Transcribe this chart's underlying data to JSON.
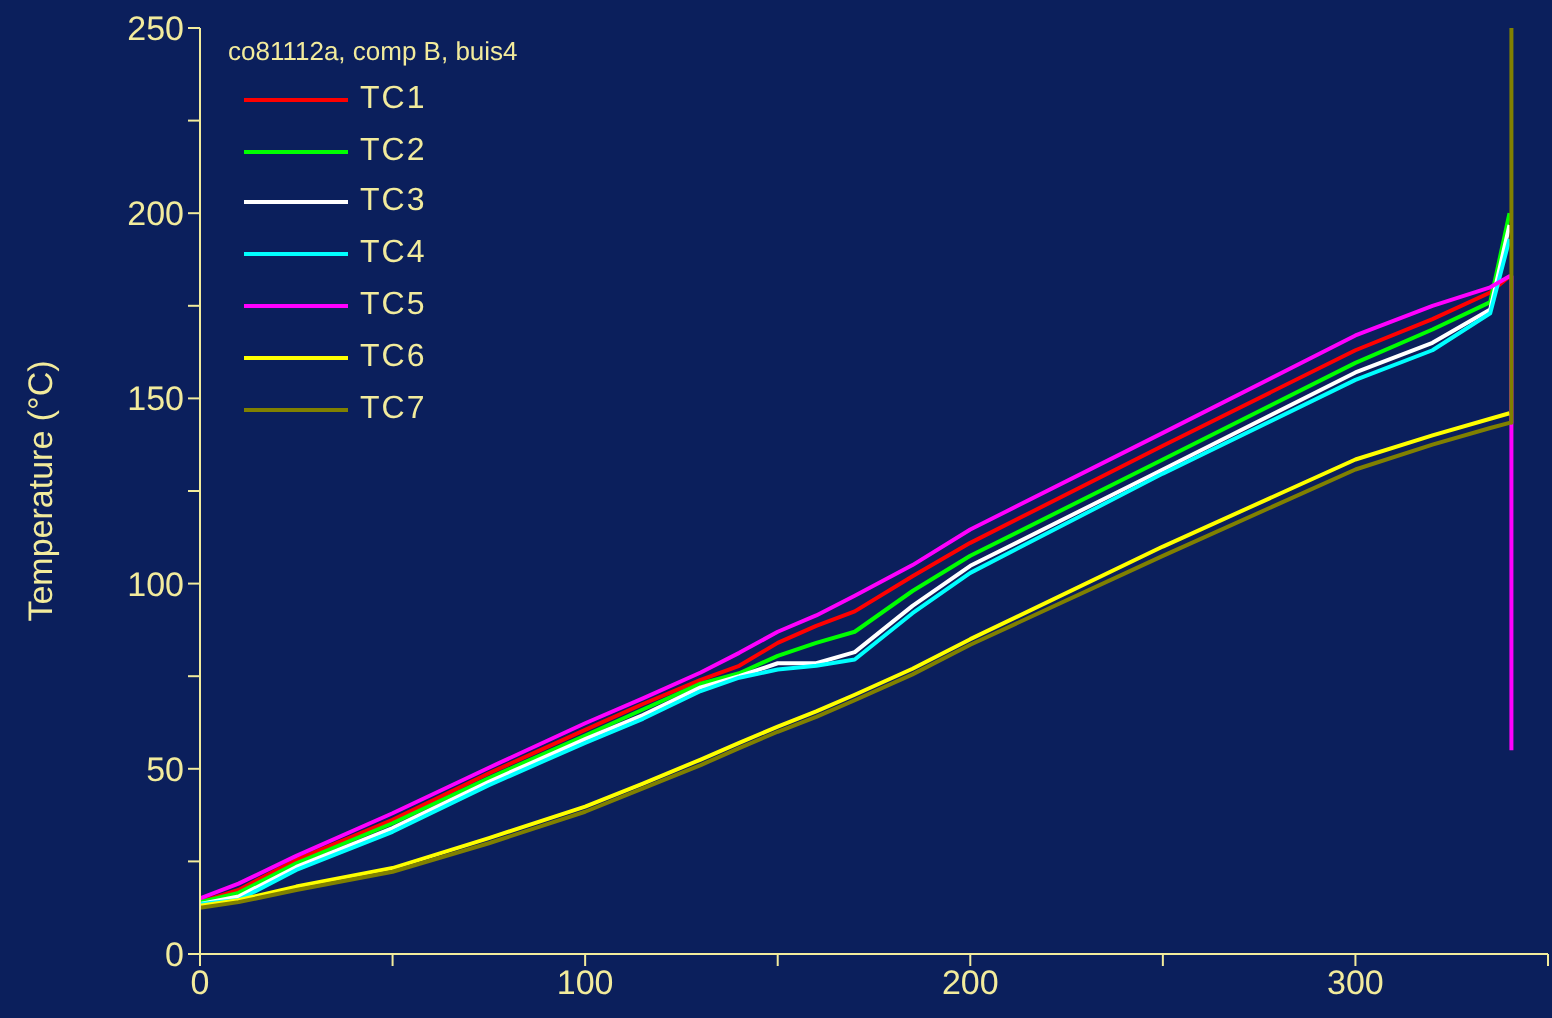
{
  "chart_data": {
    "type": "line",
    "ylabel": "Temperature (°C)",
    "legend_title": "co81112a, comp B, buis4",
    "legend": "top left",
    "grid": false,
    "marker": "none",
    "line_style": "solid",
    "xlim": [
      0,
      350
    ],
    "ylim": [
      0,
      250
    ],
    "xticks": [
      0,
      {
        "value": 50,
        "label": null
      },
      100,
      {
        "value": 150,
        "label": null
      },
      200,
      {
        "value": 250,
        "label": null
      },
      300,
      {
        "value": 350,
        "label": null
      }
    ],
    "yticks": [
      0,
      {
        "value": 25,
        "label": null
      },
      50,
      {
        "value": 75,
        "label": null
      },
      100,
      {
        "value": 125,
        "label": null
      },
      150,
      {
        "value": 175,
        "label": null
      },
      200,
      {
        "value": 225,
        "label": null
      },
      250
    ],
    "x": [
      0,
      10,
      25,
      50,
      75,
      100,
      115,
      130,
      140,
      150,
      160,
      170,
      185,
      200,
      250,
      300,
      320,
      335,
      340
    ],
    "series": [
      {
        "name": "TC1",
        "color": "#ff0000",
        "values": [
          14,
          17.3,
          25.4,
          36.2,
          48.8,
          60.5,
          67.5,
          74,
          77.8,
          84,
          88.6,
          92.5,
          102,
          111,
          137.2,
          163,
          171.4,
          178.6,
          183
        ]
      },
      {
        "name": "TC2",
        "color": "#00ff00",
        "values": [
          14,
          16.5,
          24.5,
          35.3,
          47.5,
          59,
          66,
          73,
          75.8,
          80.5,
          84,
          87,
          98,
          107.5,
          133.5,
          159.6,
          168.6,
          176,
          200
        ]
      },
      {
        "name": "TC3",
        "color": "#ffffff",
        "values": [
          13.5,
          15.5,
          23.5,
          34,
          46.5,
          58,
          64.5,
          72,
          75,
          78.5,
          78.5,
          81.5,
          94,
          104.8,
          130.8,
          157,
          165,
          174,
          196.8
        ]
      },
      {
        "name": "TC4",
        "color": "#00ffff",
        "values": [
          13.5,
          14.6,
          22.7,
          33,
          45.6,
          57,
          63.5,
          71,
          74.6,
          76.8,
          77.8,
          79.5,
          92,
          102.9,
          129.7,
          155,
          163,
          173,
          193
        ]
      },
      {
        "name": "TC5",
        "color": "#ff00ff",
        "x": [
          0,
          10,
          25,
          50,
          75,
          100,
          115,
          130,
          140,
          150,
          160,
          170,
          185,
          200,
          250,
          300,
          320,
          335,
          340,
          340.5,
          340.5
        ],
        "values": [
          15,
          19,
          26.5,
          38,
          50.3,
          62.3,
          69,
          76,
          81.3,
          87,
          91.4,
          96.7,
          105,
          114.6,
          140.7,
          167,
          175,
          180,
          183,
          183,
          55
        ]
      },
      {
        "name": "TC6",
        "color": "#ffff00",
        "values": [
          13,
          14.5,
          18.2,
          23.2,
          31.3,
          39.8,
          46,
          52.5,
          57,
          61.4,
          65.5,
          70,
          77,
          85,
          110,
          133.5,
          140,
          144.5,
          146
        ]
      },
      {
        "name": "TC7",
        "color": "#808000",
        "x": [
          0,
          10,
          25,
          50,
          75,
          100,
          115,
          130,
          140,
          150,
          160,
          170,
          185,
          200,
          250,
          300,
          320,
          335,
          340,
          340.5,
          340.5
        ],
        "values": [
          12.5,
          14,
          17.3,
          22.2,
          29.9,
          38.4,
          44.7,
          51,
          55.6,
          60,
          64,
          68.5,
          75.5,
          83.5,
          107.5,
          130.8,
          137.5,
          142,
          143.4,
          143.4,
          250
        ]
      }
    ]
  }
}
